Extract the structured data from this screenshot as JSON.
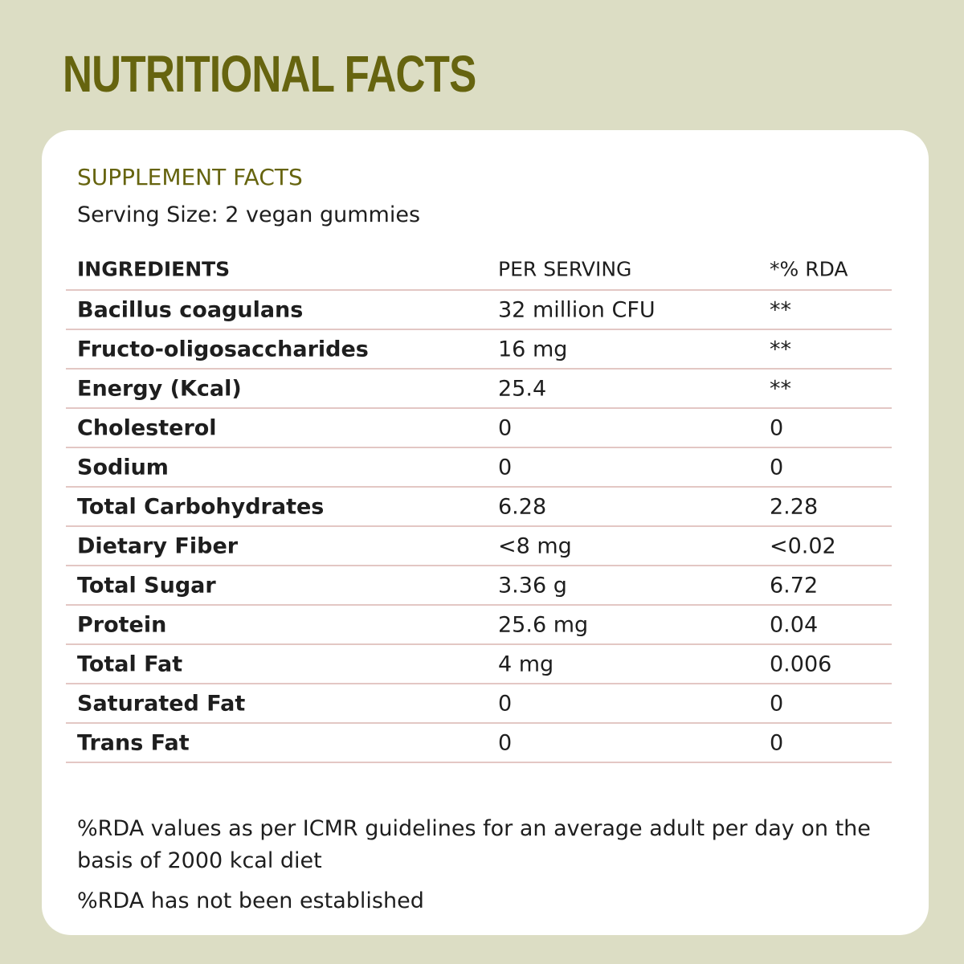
{
  "page_title": "NUTRITIONAL FACTS",
  "card": {
    "heading": "SUPPLEMENT FACTS",
    "serving_size": "Serving Size: 2 vegan gummies"
  },
  "table": {
    "headers": [
      "INGREDIENTS",
      "PER SERVING",
      "*% RDA"
    ],
    "rows": [
      {
        "ingredient": "Bacillus coagulans",
        "per_serving": "32 million CFU",
        "rda": "**"
      },
      {
        "ingredient": "Fructo-oligosaccharides",
        "per_serving": "16 mg",
        "rda": "**"
      },
      {
        "ingredient": "Energy (Kcal)",
        "per_serving": "25.4",
        "rda": "**"
      },
      {
        "ingredient": "Cholesterol",
        "per_serving": "0",
        "rda": "0"
      },
      {
        "ingredient": "Sodium",
        "per_serving": "0",
        "rda": "0"
      },
      {
        "ingredient": "Total Carbohydrates",
        "per_serving": "6.28",
        "rda": "2.28"
      },
      {
        "ingredient": "Dietary Fiber",
        "per_serving": "<8 mg",
        "rda": "<0.02"
      },
      {
        "ingredient": "Total Sugar",
        "per_serving": "3.36 g",
        "rda": "6.72"
      },
      {
        "ingredient": "Protein",
        "per_serving": "25.6 mg",
        "rda": "0.04"
      },
      {
        "ingredient": "Total Fat",
        "per_serving": "4 mg",
        "rda": "0.006"
      },
      {
        "ingredient": "Saturated Fat",
        "per_serving": "0",
        "rda": "0"
      },
      {
        "ingredient": "Trans Fat",
        "per_serving": "0",
        "rda": "0"
      }
    ]
  },
  "notes": [
    "%RDA values as per ICMR guidelines for an average adult per day on the basis of 2000 kcal diet",
    "%RDA has not been established"
  ],
  "colors": {
    "background": "#dcddc4",
    "accent": "#66640f",
    "card": "#ffffff",
    "divider": "#e3c7c4"
  }
}
